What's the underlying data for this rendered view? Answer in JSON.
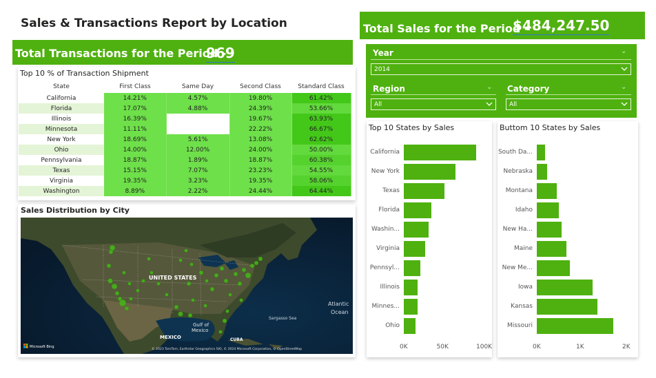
{
  "report_title": "Sales & Transactions Report by Location",
  "transactions_banner": {
    "label": "Total Transactions for the Period -",
    "value": "969"
  },
  "sales_banner": {
    "label": "Total Sales for the Period -",
    "value": "$484,247.50"
  },
  "filters": {
    "year": {
      "title": "Year",
      "value": "2014"
    },
    "region": {
      "title": "Region",
      "value": "All"
    },
    "category": {
      "title": "Category",
      "value": "All"
    }
  },
  "shipment_table": {
    "title": "Top 10 % of Transaction Shipment",
    "columns": [
      "State",
      "First Class",
      "Same Day",
      "Second Class",
      "Standard Class"
    ],
    "rows": [
      {
        "state": "California",
        "cells": [
          "14.21%",
          "4.57%",
          "19.80%",
          "61.42%"
        ]
      },
      {
        "state": "Florida",
        "cells": [
          "17.07%",
          "4.88%",
          "24.39%",
          "53.66%"
        ]
      },
      {
        "state": "Illinois",
        "cells": [
          "16.39%",
          "",
          "19.67%",
          "63.93%"
        ]
      },
      {
        "state": "Minnesota",
        "cells": [
          "11.11%",
          "",
          "22.22%",
          "66.67%"
        ]
      },
      {
        "state": "New York",
        "cells": [
          "18.69%",
          "5.61%",
          "13.08%",
          "62.62%"
        ]
      },
      {
        "state": "Ohio",
        "cells": [
          "14.00%",
          "12.00%",
          "24.00%",
          "50.00%"
        ]
      },
      {
        "state": "Pennsylvania",
        "cells": [
          "18.87%",
          "1.89%",
          "18.87%",
          "60.38%"
        ]
      },
      {
        "state": "Texas",
        "cells": [
          "15.15%",
          "7.07%",
          "23.23%",
          "54.55%"
        ]
      },
      {
        "state": "Virginia",
        "cells": [
          "19.35%",
          "3.23%",
          "19.35%",
          "58.06%"
        ]
      },
      {
        "state": "Washington",
        "cells": [
          "8.89%",
          "2.22%",
          "24.44%",
          "64.44%"
        ]
      }
    ]
  },
  "map": {
    "title": "Sales Distribution by City",
    "labels": {
      "country": "UNITED STATES",
      "gulf": "Gulf of\nMexico",
      "mexico": "MEXICO",
      "cuba": "CUBA",
      "sargasso": "Sargasso Sea",
      "atlantic": "Atlantic\nOcean"
    },
    "bing_logo": "Microsoft Bing",
    "attribution": "© 2023 TomTom, Earthstar Geographics SIO, © 2024 Microsoft Corporation, © OpenStreetMap"
  },
  "top_states": {
    "title": "Top 10 States by Sales",
    "categories": [
      "California",
      "New York",
      "Texas",
      "Florida",
      "Washin...",
      "Virginia",
      "Pennsyl...",
      "Illinois",
      "Minnes...",
      "Ohio"
    ],
    "values": [
      91000,
      65000,
      51000,
      35000,
      31000,
      27000,
      21000,
      17000,
      17000,
      15000
    ],
    "ticks": [
      "0K",
      "50K",
      "100K"
    ],
    "xlim": [
      0,
      100000
    ]
  },
  "bottom_states": {
    "title": "Buttom 10 States by Sales",
    "categories": [
      "South Da...",
      "Nebraska",
      "Montana",
      "Idaho",
      "New Ha...",
      "Maine",
      "New Me...",
      "Iowa",
      "Kansas",
      "Missouri"
    ],
    "values": [
      180,
      230,
      440,
      480,
      530,
      640,
      720,
      1210,
      1320,
      1650
    ],
    "ticks": [
      "0K",
      "1K",
      "2K"
    ],
    "xlim": [
      0,
      2000
    ]
  },
  "colors": {
    "accent": "#4fb10f"
  }
}
